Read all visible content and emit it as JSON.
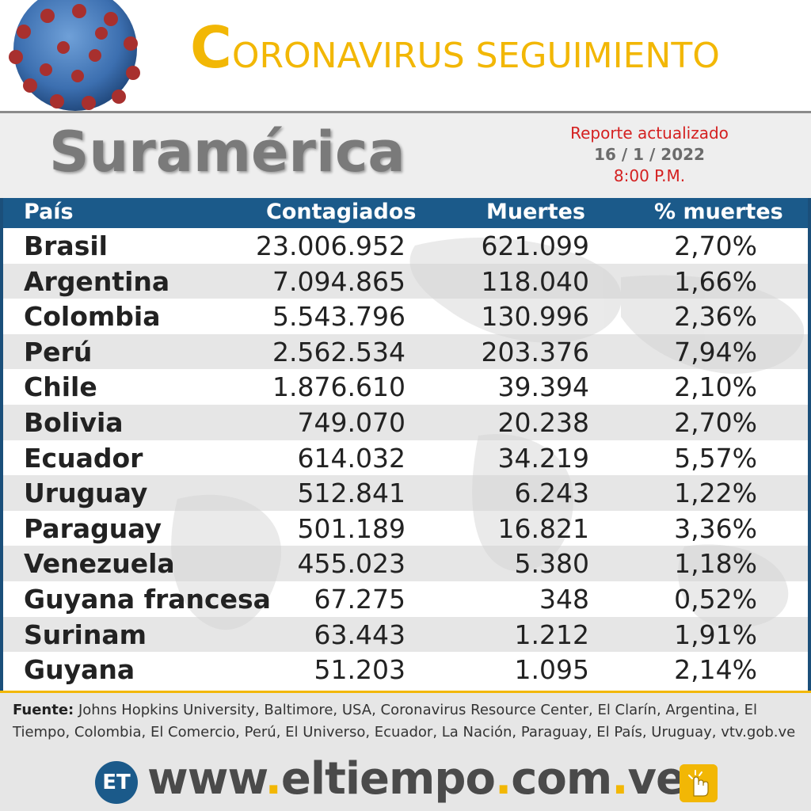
{
  "header": {
    "title_initial": "C",
    "title_rest": "ORONAVIRUS SEGUIMIENTO"
  },
  "region": {
    "name": "Suramérica",
    "report_label": "Reporte actualizado",
    "report_date": "16 / 1 / 2022",
    "report_time": "8:00 P.M."
  },
  "table": {
    "columns": [
      "País",
      "Contagiados",
      "Muertes",
      "% muertes"
    ],
    "rows": [
      {
        "country": "Brasil",
        "cases": "23.006.952",
        "deaths": "621.099",
        "pct": "2,70%"
      },
      {
        "country": "Argentina",
        "cases": "7.094.865",
        "deaths": "118.040",
        "pct": "1,66%"
      },
      {
        "country": "Colombia",
        "cases": "5.543.796",
        "deaths": "130.996",
        "pct": "2,36%"
      },
      {
        "country": "Perú",
        "cases": "2.562.534",
        "deaths": "203.376",
        "pct": "7,94%"
      },
      {
        "country": "Chile",
        "cases": "1.876.610",
        "deaths": "39.394",
        "pct": "2,10%"
      },
      {
        "country": "Bolivia",
        "cases": "749.070",
        "deaths": "20.238",
        "pct": "2,70%"
      },
      {
        "country": "Ecuador",
        "cases": "614.032",
        "deaths": "34.219",
        "pct": "5,57%"
      },
      {
        "country": "Uruguay",
        "cases": "512.841",
        "deaths": "6.243",
        "pct": "1,22%"
      },
      {
        "country": "Paraguay",
        "cases": "501.189",
        "deaths": "16.821",
        "pct": "3,36%"
      },
      {
        "country": "Venezuela",
        "cases": "455.023",
        "deaths": "5.380",
        "pct": "1,18%"
      },
      {
        "country": "Guyana francesa",
        "cases": "67.275",
        "deaths": "348",
        "pct": "0,52%"
      },
      {
        "country": "Surinam",
        "cases": "63.443",
        "deaths": "1.212",
        "pct": "1,91%"
      },
      {
        "country": "Guyana",
        "cases": "51.203",
        "deaths": "1.095",
        "pct": "2,14%"
      }
    ]
  },
  "footer": {
    "source_label": "Fuente:",
    "source_text": " Johns Hopkins University, Baltimore, USA, Coronavirus Resource Center,  El Clarín, Argentina, El Tiempo, Colombia, El Comercio, Perú, El Universo, Ecuador, La Nación, Paraguay, El País, Uruguay, vtv.gob.ve",
    "logo_text": "ET",
    "url_parts": [
      "www",
      ".",
      "eltiempo",
      ".",
      "com",
      ".",
      "ve"
    ]
  },
  "icons": {
    "virus": "coronavirus-icon",
    "hand": "touch-hand-icon"
  },
  "colors": {
    "accent_gold": "#f2b705",
    "header_blue": "#1b5a8a",
    "report_red": "#d42020"
  }
}
